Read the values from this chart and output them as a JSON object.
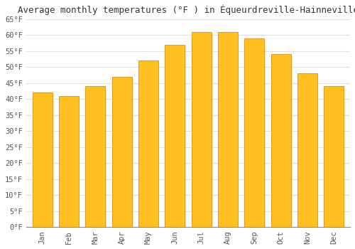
{
  "title": "Average monthly temperatures (°F ) in Équeurdreville-Hainneville",
  "months": [
    "Jan",
    "Feb",
    "Mar",
    "Apr",
    "May",
    "Jun",
    "Jul",
    "Aug",
    "Sep",
    "Oct",
    "Nov",
    "Dec"
  ],
  "values": [
    42,
    41,
    44,
    47,
    52,
    57,
    61,
    61,
    59,
    54,
    48,
    44
  ],
  "bar_color_face": "#FFC020",
  "bar_color_edge": "#E8890A",
  "ylim": [
    0,
    65
  ],
  "yticks": [
    0,
    5,
    10,
    15,
    20,
    25,
    30,
    35,
    40,
    45,
    50,
    55,
    60,
    65
  ],
  "ytick_labels": [
    "0°F",
    "5°F",
    "10°F",
    "15°F",
    "20°F",
    "25°F",
    "30°F",
    "35°F",
    "40°F",
    "45°F",
    "50°F",
    "55°F",
    "60°F",
    "65°F"
  ],
  "bg_color": "#FFFFFF",
  "grid_color": "#E0E0E0",
  "title_fontsize": 9,
  "tick_fontsize": 7.5,
  "font_family": "monospace",
  "bar_width": 0.75
}
